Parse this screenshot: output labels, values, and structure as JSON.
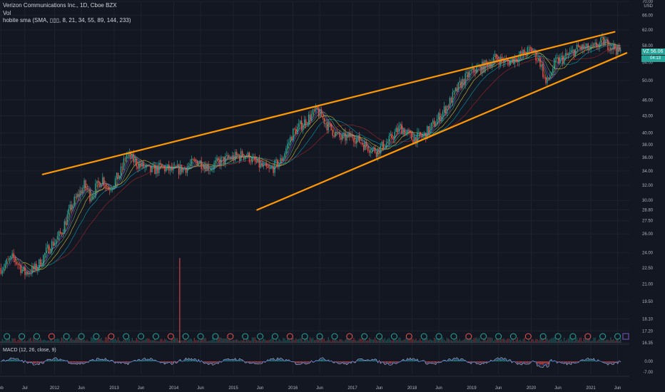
{
  "header": {
    "symbol_title": "Verizon Communications Inc., 1D, Cboe BZX",
    "volume_label": "Vol",
    "indicator_label": "hobite sma (SMA, ▯▯▯, 8, 21, 34, 55, 89, 144, 233)"
  },
  "macd": {
    "label": "MACD (12, 26, close, 9)"
  },
  "ticker_badge": {
    "symbol": "VZ",
    "price": "56.06",
    "countdown": "04:13"
  },
  "colors": {
    "background": "#131722",
    "up": "#26a69a",
    "down": "#ef5350",
    "trendline": "#ff9800",
    "grid": "#1e222d"
  },
  "chart_data": {
    "type": "line",
    "currency": "USD",
    "y_ticks": [
      "70.00",
      "66.00",
      "62.00",
      "58.00",
      "56.00",
      "54.00",
      "50.00",
      "46.00",
      "43.00",
      "40.00",
      "38.00",
      "36.00",
      "34.00",
      "32.00",
      "30.00",
      "28.80",
      "27.50",
      "26.00",
      "24.00",
      "22.50",
      "21.00",
      "19.50",
      "18.10",
      "17.20",
      "16.35"
    ],
    "macd_ticks": [
      "0.00",
      "-7.00"
    ],
    "x_ticks": [
      "eb",
      "Jul",
      "2012",
      "Jun",
      "2013",
      "Jun",
      "2014",
      "Jun",
      "2015",
      "Jun",
      "2016",
      "Jun",
      "2017",
      "Jun",
      "2018",
      "Jun",
      "2019",
      "Jun",
      "2020",
      "Jun",
      "2021",
      "Jun"
    ],
    "ylim": [
      16.35,
      70.0
    ],
    "log_scale": true,
    "x_years": [
      2011.1,
      2011.5,
      2012.0,
      2012.45,
      2013.0,
      2013.45,
      2014.0,
      2014.45,
      2015.0,
      2015.45,
      2016.0,
      2016.45,
      2017.0,
      2017.45,
      2018.0,
      2018.45,
      2019.0,
      2019.45,
      2020.0,
      2020.45,
      2021.0,
      2021.45
    ],
    "price_series": {
      "x": [
        2011.1,
        2011.3,
        2011.5,
        2011.7,
        2011.9,
        2012.1,
        2012.3,
        2012.5,
        2012.6,
        2012.8,
        2012.9,
        2013.1,
        2013.2,
        2013.4,
        2013.6,
        2013.8,
        2014.0,
        2014.2,
        2014.4,
        2014.6,
        2014.8,
        2015.0,
        2015.2,
        2015.4,
        2015.6,
        2015.8,
        2016.0,
        2016.2,
        2016.4,
        2016.6,
        2016.8,
        2017.0,
        2017.2,
        2017.4,
        2017.6,
        2017.8,
        2018.0,
        2018.2,
        2018.4,
        2018.6,
        2018.8,
        2019.0,
        2019.2,
        2019.4,
        2019.6,
        2019.8,
        2020.0,
        2020.15,
        2020.25,
        2020.4,
        2020.6,
        2020.8,
        2021.0,
        2021.2,
        2021.4,
        2021.5
      ],
      "y": [
        22.5,
        23.5,
        22.0,
        22.5,
        24.5,
        26.0,
        29.5,
        32.0,
        30.5,
        33.0,
        31.5,
        33.5,
        36.5,
        35.0,
        34.0,
        34.5,
        34.0,
        34.5,
        35.5,
        34.5,
        35.5,
        36.0,
        36.5,
        35.0,
        34.0,
        35.5,
        40.0,
        42.0,
        44.0,
        41.0,
        39.0,
        39.5,
        38.0,
        37.0,
        38.5,
        41.0,
        39.0,
        39.5,
        42.0,
        45.0,
        49.0,
        52.0,
        53.0,
        55.0,
        54.0,
        55.5,
        57.0,
        54.0,
        49.0,
        54.0,
        55.5,
        57.5,
        57.0,
        59.0,
        57.5,
        56.06
      ]
    },
    "trendlines": [
      {
        "name": "upper",
        "x": [
          2011.8,
          2021.4
        ],
        "y": [
          33.5,
          61.5
        ]
      },
      {
        "name": "lower",
        "x": [
          2015.4,
          2021.6
        ],
        "y": [
          28.8,
          56.2
        ]
      }
    ],
    "volume_spike_year": 2014.1
  }
}
